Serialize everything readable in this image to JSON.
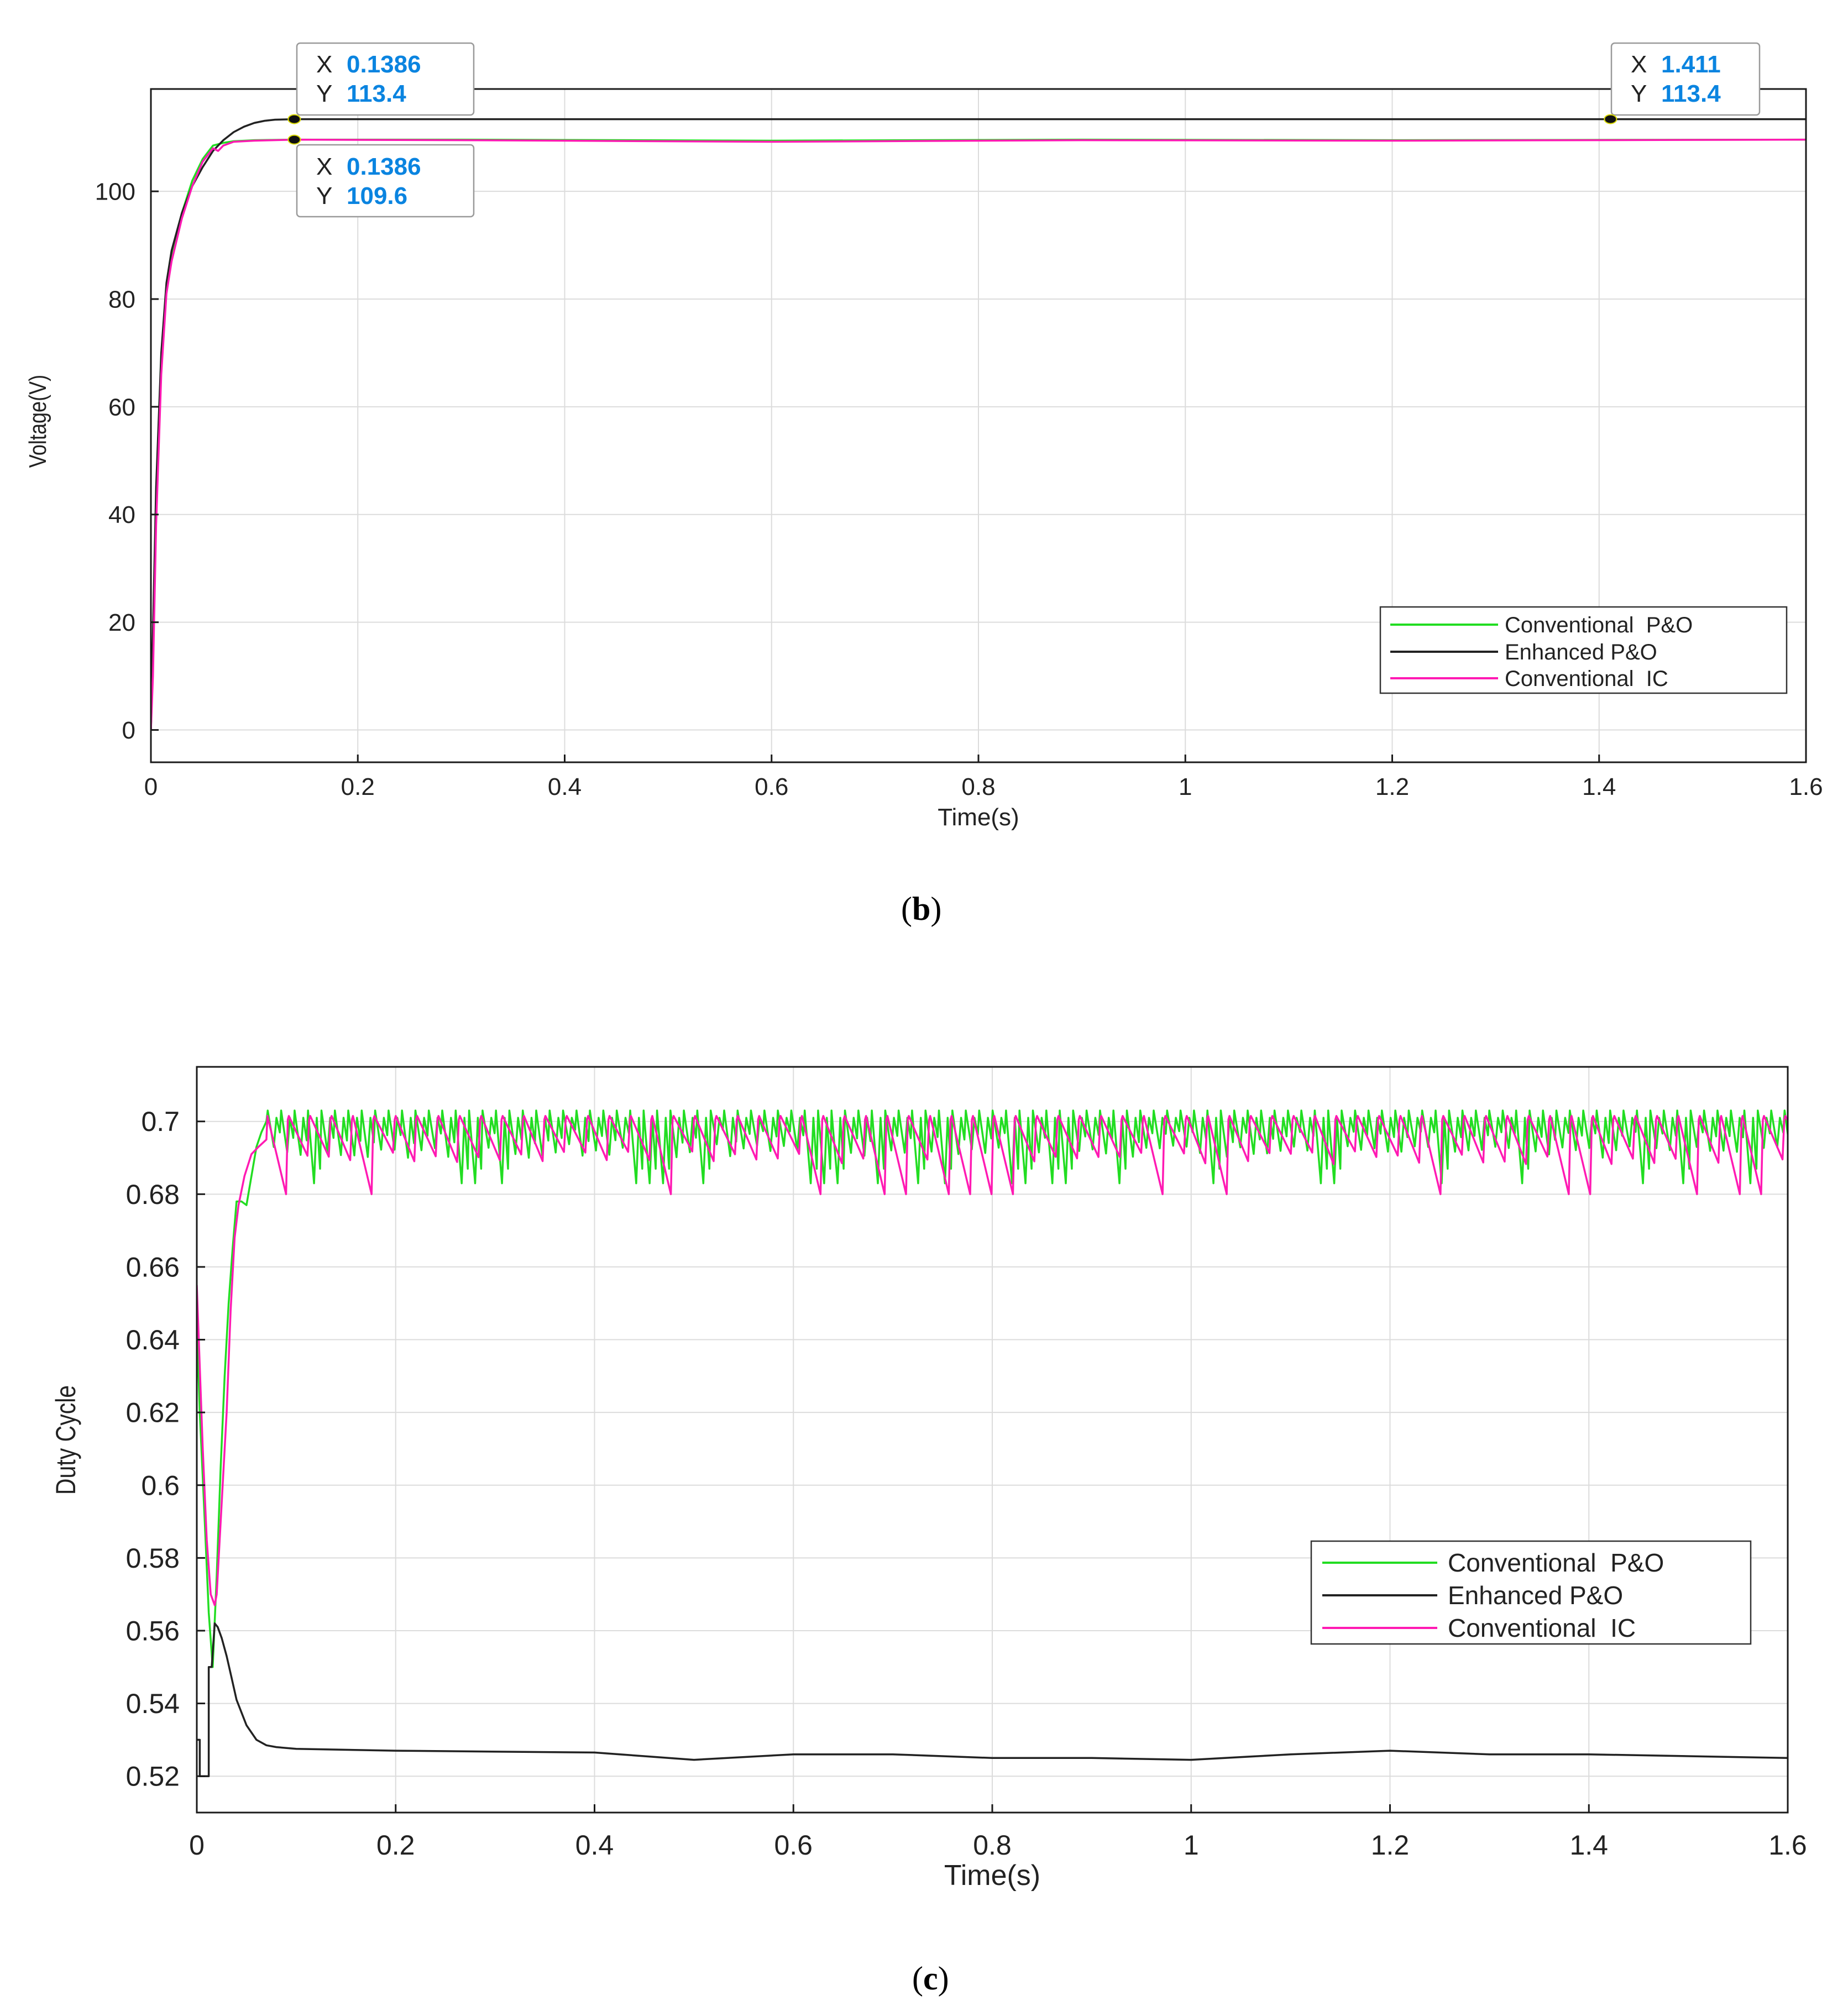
{
  "colors": {
    "conventional_po": "#22dd22",
    "enhanced_po": "#222222",
    "conventional_ic": "#ff1ab3",
    "datatip_value": "#0a84e0",
    "grid": "#dcdcdc",
    "axes": "#1a1a1a"
  },
  "chart_data": [
    {
      "id": "b",
      "type": "line",
      "caption_letter": "b",
      "xlabel": "Time(s)",
      "ylabel": "Voltage(V)",
      "xlim": [
        0,
        1.6
      ],
      "ylim": [
        -6,
        119
      ],
      "xticks": [
        0,
        0.2,
        0.4,
        0.6,
        0.8,
        1,
        1.2,
        1.4,
        1.6
      ],
      "xtick_labels": [
        "0",
        "0.2",
        "0.4",
        "0.6",
        "0.8",
        "1",
        "1.2",
        "1.4",
        "1.6"
      ],
      "yticks": [
        0,
        20,
        40,
        60,
        80,
        100
      ],
      "ytick_labels": [
        "0",
        "20",
        "40",
        "60",
        "80",
        "100"
      ],
      "grid": true,
      "legend": {
        "position": "bottom-right",
        "entries": [
          "Conventional  P&O",
          "Enhanced P&O",
          "Conventional  IC"
        ]
      },
      "series": [
        {
          "name": "Conventional  P&O",
          "color_key": "conventional_po",
          "x": [
            0,
            0.002,
            0.005,
            0.01,
            0.015,
            0.02,
            0.03,
            0.04,
            0.05,
            0.06,
            0.07,
            0.08,
            0.1,
            0.1386,
            0.3,
            0.6,
            0.9,
            1.2,
            1.6
          ],
          "y": [
            0,
            15,
            40,
            68,
            82,
            88,
            96,
            102,
            106,
            108.5,
            109,
            109.3,
            109.5,
            109.6,
            109.6,
            109.4,
            109.6,
            109.5,
            109.6
          ]
        },
        {
          "name": "Enhanced P&O",
          "color_key": "enhanced_po",
          "x": [
            0,
            0.002,
            0.005,
            0.01,
            0.015,
            0.02,
            0.03,
            0.04,
            0.05,
            0.06,
            0.07,
            0.08,
            0.09,
            0.1,
            0.11,
            0.12,
            0.1386,
            0.3,
            0.6,
            1.0,
            1.411,
            1.6
          ],
          "y": [
            0,
            18,
            45,
            70,
            83,
            89,
            96,
            101,
            104.5,
            107.5,
            109.5,
            111,
            112,
            112.7,
            113.1,
            113.3,
            113.4,
            113.4,
            113.4,
            113.4,
            113.4,
            113.4
          ]
        },
        {
          "name": "Conventional  IC",
          "color_key": "conventional_ic",
          "x": [
            0,
            0.002,
            0.005,
            0.01,
            0.015,
            0.02,
            0.03,
            0.04,
            0.05,
            0.06,
            0.065,
            0.07,
            0.08,
            0.1,
            0.1386,
            0.3,
            0.6,
            0.9,
            1.2,
            1.6
          ],
          "y": [
            0,
            10,
            38,
            66,
            81,
            87,
            95,
            101,
            105.5,
            108,
            107.5,
            108.5,
            109.2,
            109.4,
            109.6,
            109.5,
            109.2,
            109.5,
            109.4,
            109.6
          ]
        }
      ],
      "datatips": [
        {
          "x_label": "X",
          "x_value": "0.1386",
          "y_label": "Y",
          "y_value": "113.4",
          "x": 0.1386,
          "y": 113.4,
          "placement": "above"
        },
        {
          "x_label": "X",
          "x_value": "0.1386",
          "y_label": "Y",
          "y_value": "109.6",
          "x": 0.1386,
          "y": 109.6,
          "placement": "below"
        },
        {
          "x_label": "X",
          "x_value": "1.411",
          "y_label": "Y",
          "y_value": "113.4",
          "x": 1.411,
          "y": 113.4,
          "placement": "above"
        }
      ]
    },
    {
      "id": "c",
      "type": "line",
      "caption_letter": "c",
      "xlabel": "Time(s)",
      "ylabel": "Duty Cycle",
      "xlim": [
        0,
        1.6
      ],
      "ylim": [
        0.51,
        0.715
      ],
      "xticks": [
        0,
        0.2,
        0.4,
        0.6,
        0.8,
        1,
        1.2,
        1.4,
        1.6
      ],
      "xtick_labels": [
        "0",
        "0.2",
        "0.4",
        "0.6",
        "0.8",
        "1",
        "1.2",
        "1.4",
        "1.6"
      ],
      "yticks": [
        0.52,
        0.54,
        0.56,
        0.58,
        0.6,
        0.62,
        0.64,
        0.66,
        0.68,
        0.7
      ],
      "ytick_labels": [
        "0.52",
        "0.54",
        "0.56",
        "0.58",
        "0.6",
        "0.62",
        "0.64",
        "0.66",
        "0.68",
        "0.7"
      ],
      "grid": true,
      "legend": {
        "position": "center-right",
        "entries": [
          "Conventional  P&O",
          "Enhanced P&O",
          "Conventional  IC"
        ]
      },
      "series": [
        {
          "name": "Conventional  P&O",
          "color_key": "conventional_po",
          "start": {
            "x": [
              0,
              0.003,
              0.008,
              0.012,
              0.016,
              0.02,
              0.024,
              0.028,
              0.032,
              0.036,
              0.04,
              0.045,
              0.05,
              0.055,
              0.06,
              0.065,
              0.07
            ],
            "y": [
              0.645,
              0.62,
              0.59,
              0.565,
              0.55,
              0.575,
              0.605,
              0.63,
              0.65,
              0.665,
              0.678,
              0.678,
              0.677,
              0.685,
              0.693,
              0.697,
              0.7
            ]
          },
          "oscillation": {
            "x_start": 0.07,
            "x_end": 1.6,
            "period": 0.0135,
            "high": 0.703,
            "low": 0.69,
            "deep_low": 0.683
          }
        },
        {
          "name": "Enhanced P&O",
          "color_key": "enhanced_po",
          "x": [
            0,
            0.003,
            0.003,
            0.012,
            0.012,
            0.015,
            0.018,
            0.021,
            0.025,
            0.03,
            0.035,
            0.04,
            0.05,
            0.06,
            0.07,
            0.08,
            0.1,
            0.2,
            0.4,
            0.5,
            0.6,
            0.7,
            0.8,
            0.9,
            1.0,
            1.1,
            1.2,
            1.3,
            1.4,
            1.5,
            1.6
          ],
          "y": [
            0.53,
            0.53,
            0.52,
            0.52,
            0.55,
            0.55,
            0.562,
            0.561,
            0.558,
            0.553,
            0.547,
            0.541,
            0.534,
            0.53,
            0.5285,
            0.528,
            0.5275,
            0.527,
            0.5265,
            0.5245,
            0.526,
            0.526,
            0.525,
            0.525,
            0.5245,
            0.526,
            0.527,
            0.526,
            0.526,
            0.5255,
            0.525
          ]
        },
        {
          "name": "Conventional  IC",
          "color_key": "conventional_ic",
          "start": {
            "x": [
              0,
              0.002,
              0.006,
              0.01,
              0.014,
              0.018,
              0.02,
              0.022,
              0.026,
              0.03,
              0.034,
              0.038,
              0.042,
              0.048,
              0.055,
              0.062,
              0.07
            ],
            "y": [
              0.655,
              0.64,
              0.61,
              0.585,
              0.57,
              0.567,
              0.57,
              0.58,
              0.6,
              0.62,
              0.648,
              0.668,
              0.677,
              0.685,
              0.691,
              0.693,
              0.695
            ]
          },
          "oscillation": {
            "x_start": 0.07,
            "x_end": 1.6,
            "period": 0.0215,
            "high": 0.7015,
            "low": 0.688,
            "deep_low": 0.68
          }
        }
      ]
    }
  ]
}
